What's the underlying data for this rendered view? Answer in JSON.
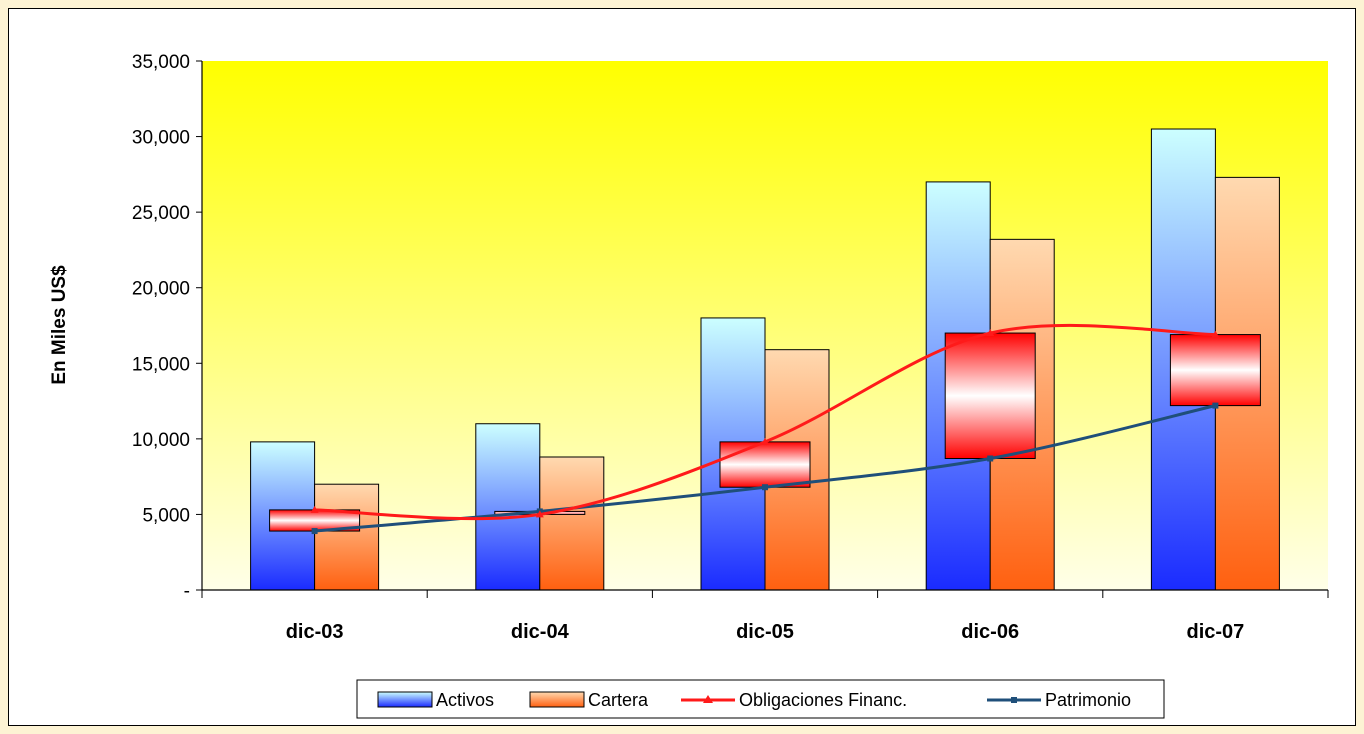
{
  "chart_data": {
    "type": "bar",
    "ylabel": "En Miles US$",
    "ylim": [
      0,
      35000
    ],
    "yticks": [
      {
        "value": 35000,
        "label": "35,000"
      },
      {
        "value": 30000,
        "label": "30,000"
      },
      {
        "value": 25000,
        "label": "25,000"
      },
      {
        "value": 20000,
        "label": "20,000"
      },
      {
        "value": 15000,
        "label": "15,000"
      },
      {
        "value": 10000,
        "label": "10,000"
      },
      {
        "value": 5000,
        "label": "5,000"
      },
      {
        "value": 0,
        "label": "-"
      }
    ],
    "categories": [
      "dic-03",
      "dic-04",
      "dic-05",
      "dic-06",
      "dic-07"
    ],
    "series": [
      {
        "name": "Activos",
        "kind": "bar",
        "values": [
          9800,
          11000,
          18000,
          27000,
          30500
        ]
      },
      {
        "name": "Cartera",
        "kind": "bar",
        "values": [
          7000,
          8800,
          15900,
          23200,
          27300
        ]
      },
      {
        "name": "Obligaciones Financ.",
        "kind": "line",
        "values": [
          5300,
          5000,
          9800,
          17000,
          16900
        ]
      },
      {
        "name": "Patrimonio",
        "kind": "line",
        "values": [
          3900,
          5200,
          6800,
          8700,
          12200
        ]
      }
    ],
    "grid": false,
    "legend_position": "bottom",
    "colors": {
      "activos_top": "#ccffff",
      "activos_bottom": "#1a2bff",
      "cartera_top": "#ffd9b0",
      "cartera_bottom": "#ff6010",
      "obligaciones": "#ff1a1a",
      "patrimonio": "#1f4f7a",
      "plot_top": "#ffff00",
      "plot_bottom": "#ffffe8"
    }
  }
}
